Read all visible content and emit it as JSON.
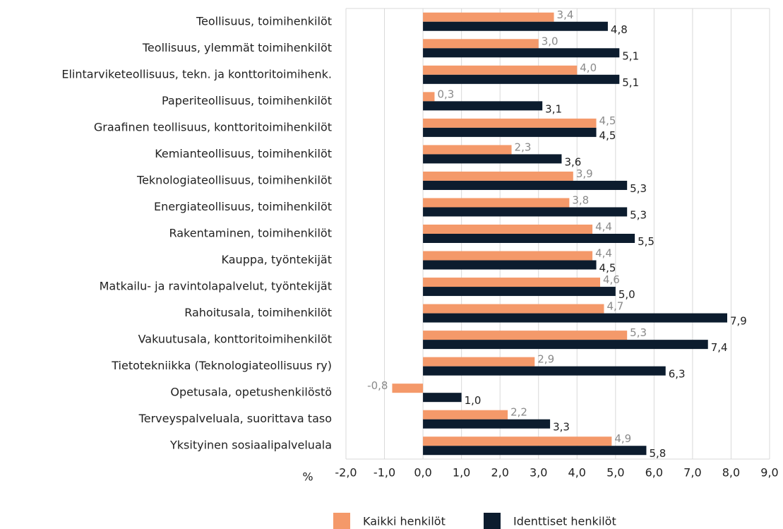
{
  "chart_data": {
    "type": "bar",
    "orientation": "horizontal",
    "categories": [
      "Teollisuus, toimihenkilöt",
      "Teollisuus, ylemmät toimihenkilöt",
      "Elintarviketeollisuus, tekn. ja konttoritoimihenk.",
      "Paperiteollisuus, toimihenkilöt",
      "Graafinen teollisuus, konttoritoimihenkilöt",
      "Kemianteollisuus, toimihenkilöt",
      "Teknologiateollisuus, toimihenkilöt",
      "Energiateollisuus, toimihenkilöt",
      "Rakentaminen, toimihenkilöt",
      "Kauppa, työntekijät",
      "Matkailu- ja ravintolapalvelut, työntekijät",
      "Rahoitusala, toimihenkilöt",
      "Vakuutusala, konttoritoimihenkilöt",
      "Tietotekniikka (Teknologiateollisuus ry)",
      "Opetusala, opetushenkilöstö",
      "Terveyspalveluala, suorittava taso",
      "Yksityinen sosiaalipalveluala"
    ],
    "series": [
      {
        "name": "Kaikki henkilöt",
        "color": "#f4996a",
        "label_color": "#8a8a8a",
        "values": [
          3.4,
          3.0,
          4.0,
          0.3,
          4.5,
          2.3,
          3.9,
          3.8,
          4.4,
          4.4,
          4.6,
          4.7,
          5.3,
          2.9,
          -0.8,
          2.2,
          4.9
        ],
        "value_labels": [
          "3,4",
          "3,0",
          "4,0",
          "0,3",
          "4,5",
          "2,3",
          "3,9",
          "3,8",
          "4,4",
          "4,4",
          "4,6",
          "4,7",
          "5,3",
          "2,9",
          "-0,8",
          "2,2",
          "4,9"
        ]
      },
      {
        "name": "Identtiset henkilöt",
        "color": "#0c1c2e",
        "label_color": "#222222",
        "values": [
          4.8,
          5.1,
          5.1,
          3.1,
          4.5,
          3.6,
          5.3,
          5.3,
          5.5,
          4.5,
          5.0,
          7.9,
          7.4,
          6.3,
          1.0,
          3.3,
          5.8
        ],
        "value_labels": [
          "4,8",
          "5,1",
          "5,1",
          "3,1",
          "4,5",
          "3,6",
          "5,3",
          "5,3",
          "5,5",
          "4,5",
          "5,0",
          "7,9",
          "7,4",
          "6,3",
          "1,0",
          "3,3",
          "5,8"
        ]
      }
    ],
    "xlabel": "%",
    "xlim": [
      -2,
      9
    ],
    "xticks": [
      {
        "value": -2,
        "label": "-2,0"
      },
      {
        "value": -1,
        "label": "-1,0"
      },
      {
        "value": 0,
        "label": "0,0"
      },
      {
        "value": 1,
        "label": "1,0"
      },
      {
        "value": 2,
        "label": "2,0"
      },
      {
        "value": 3,
        "label": "3,0"
      },
      {
        "value": 4,
        "label": "4,0"
      },
      {
        "value": 5,
        "label": "5,0"
      },
      {
        "value": 6,
        "label": "6,0"
      },
      {
        "value": 7,
        "label": "7,0"
      },
      {
        "value": 8,
        "label": "8,0"
      },
      {
        "value": 9,
        "label": "9,0"
      }
    ],
    "grid": true,
    "legend": "bottom"
  }
}
